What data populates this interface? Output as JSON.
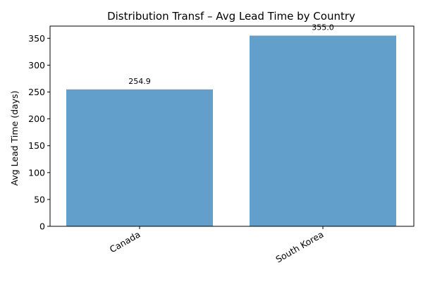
{
  "chart_data": {
    "type": "bar",
    "title": "Distribution Transf – Avg Lead Time by Country",
    "xlabel": "",
    "ylabel": "Avg Lead Time (days)",
    "categories": [
      "Canada",
      "South Korea"
    ],
    "values": [
      254.9,
      355.0
    ],
    "data_labels": [
      "254.9",
      "355.0"
    ],
    "ylim": [
      0,
      372.75
    ],
    "yticks": [
      0,
      50,
      100,
      150,
      200,
      250,
      300,
      350
    ],
    "grid": false,
    "legend": "none",
    "bar_color": "#62a0cb"
  }
}
